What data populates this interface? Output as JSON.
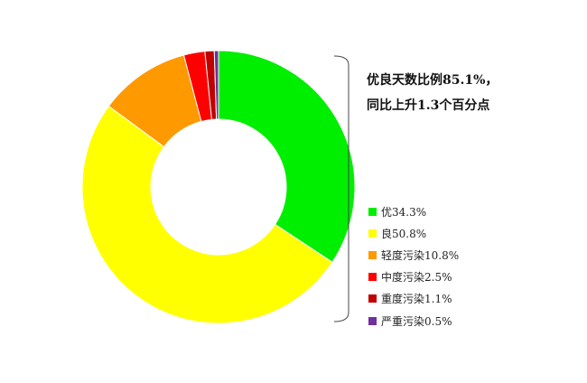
{
  "chart_data": {
    "type": "pie",
    "donut": true,
    "title_lines": [
      "优良天数比例85.1%，",
      "同比上升1.3个百分点"
    ],
    "categories": [
      "优",
      "良",
      "轻度污染",
      "中度污染",
      "重度污染",
      "严重污染"
    ],
    "values": [
      34.3,
      50.8,
      10.8,
      2.5,
      1.1,
      0.5
    ],
    "legend_labels": [
      "优34.3%",
      "良50.8%",
      "轻度污染10.8%",
      "中度污染2.5%",
      "重度污染1.1%",
      "严重污染0.5%"
    ],
    "colors": [
      "#00ee00",
      "#ffff00",
      "#ff9900",
      "#ff0000",
      "#c00000",
      "#7030a0"
    ],
    "legend_position": "right"
  }
}
